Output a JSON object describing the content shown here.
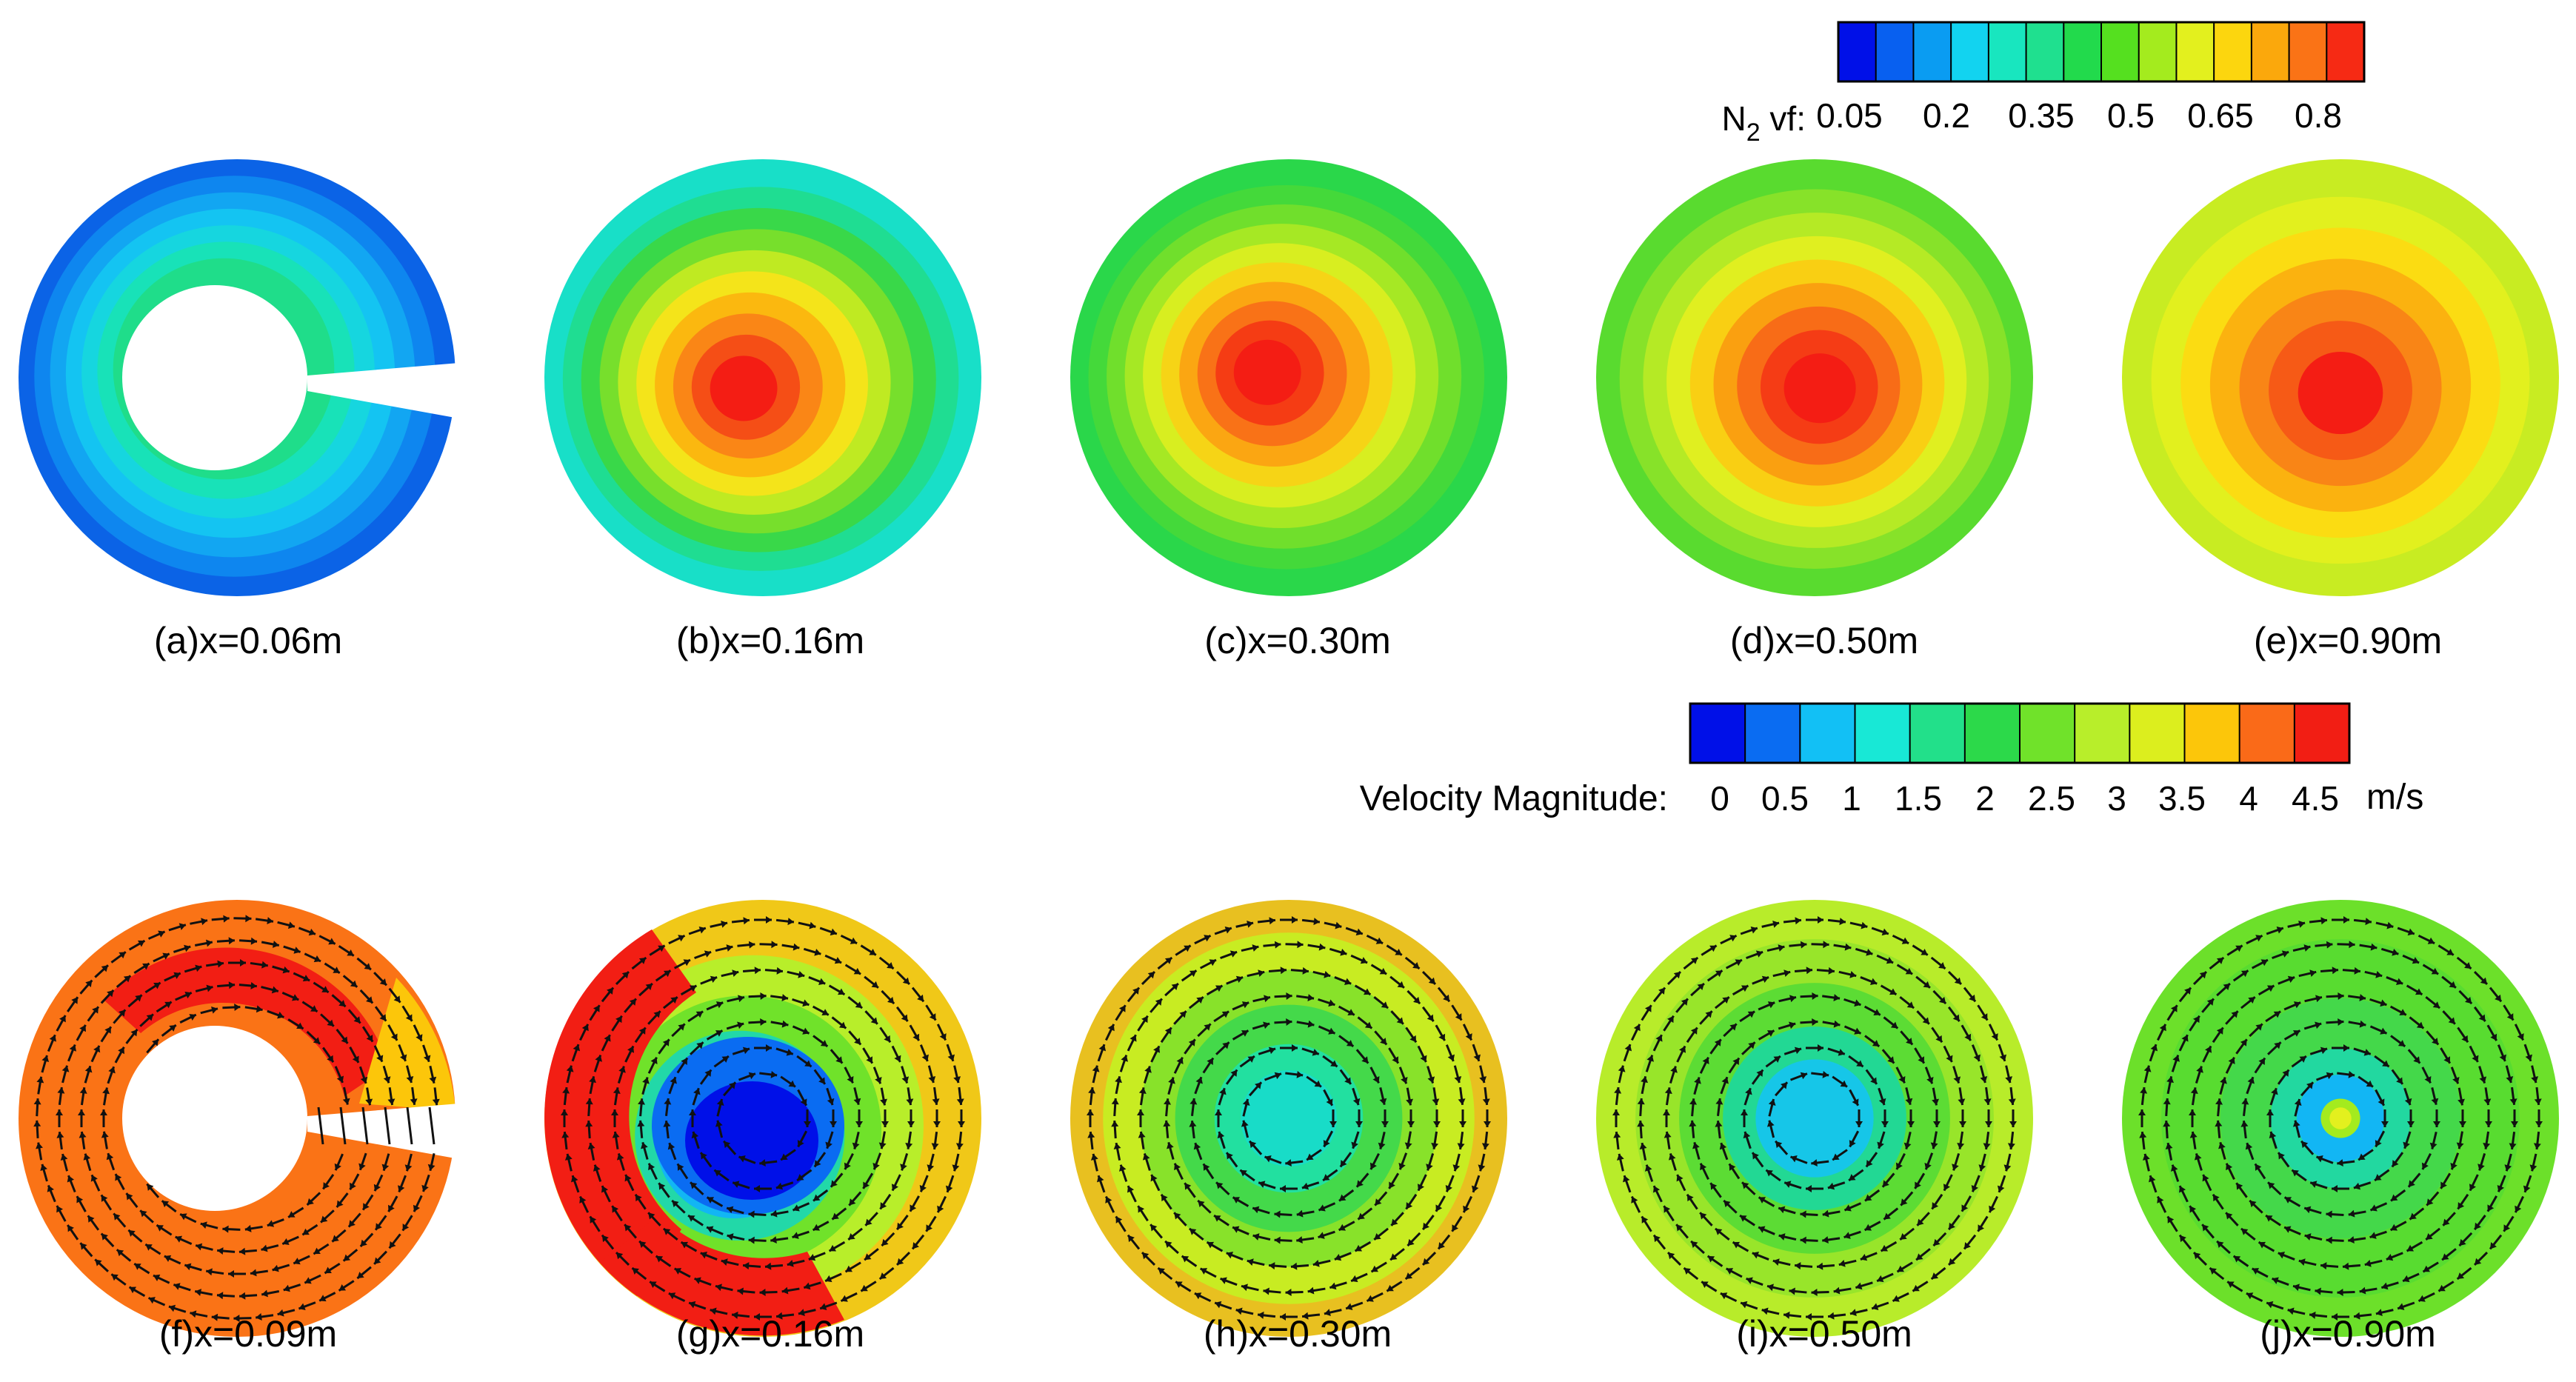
{
  "top_colorbar": {
    "label_main": "N",
    "label_sub": "2",
    "label_tail": " vf:",
    "tick_labels": [
      "0.05",
      "0.2",
      "0.35",
      "0.5",
      "0.65",
      "0.8"
    ],
    "colors": [
      "#0010e8",
      "#0860f0",
      "#0a9cf2",
      "#12d3f0",
      "#18e6bf",
      "#1fe08f",
      "#22da4c",
      "#55e01f",
      "#a4eb1e",
      "#e3f01e",
      "#fcd60e",
      "#fba80c",
      "#fa7316",
      "#f62a14"
    ]
  },
  "bottom_colorbar": {
    "label": "Velocity Magnitude:",
    "tick_labels": [
      "0",
      "0.5",
      "1",
      "1.5",
      "2",
      "2.5",
      "3",
      "3.5",
      "4",
      "4.5"
    ],
    "unit": "m/s",
    "colors": [
      "#0010e8",
      "#0a6cf2",
      "#12c0f5",
      "#18e8d6",
      "#22e08a",
      "#2cd94a",
      "#70e22a",
      "#b8ee2a",
      "#dcee1e",
      "#fcc60a",
      "#fa6a18",
      "#f21e14"
    ]
  },
  "top_panels": [
    {
      "caption": "(a)x=0.06m",
      "rings": [
        "#0b63e6",
        "#0e86ef",
        "#12a6f2",
        "#14c4f2",
        "#16d6df",
        "#18e2b8",
        "#1fdd8a"
      ],
      "hole": true
    },
    {
      "caption": "(b)x=0.16m",
      "rings": [
        "#18dfc8",
        "#1fdd92",
        "#39d849",
        "#77df2c",
        "#bfea22",
        "#f4e41a",
        "#fbb80f",
        "#fa8616",
        "#f54e16",
        "#f41d14"
      ]
    },
    {
      "caption": "(c)x=0.30m",
      "rings": [
        "#2ad74a",
        "#44d93a",
        "#70df2c",
        "#a6e824",
        "#d8ee20",
        "#f6d416",
        "#fba612",
        "#f97217",
        "#f53c14",
        "#f41d14"
      ]
    },
    {
      "caption": "(d)x=0.50m",
      "rings": [
        "#59db2f",
        "#87e229",
        "#b5ea25",
        "#e0ef20",
        "#f9cf13",
        "#faa010",
        "#f86c17",
        "#f53c15",
        "#f41d14"
      ]
    },
    {
      "caption": "(e)x=0.90m",
      "rings": [
        "#c8ec22",
        "#e2f01e",
        "#fbdc12",
        "#fbb20f",
        "#f98516",
        "#f65a16",
        "#f41d14"
      ]
    }
  ],
  "bottom_panels": [
    {
      "caption": "(f)x=0.09m"
    },
    {
      "caption": "(g)x=0.16m"
    },
    {
      "caption": "(h)x=0.30m"
    },
    {
      "caption": "(i)x=0.50m"
    },
    {
      "caption": "(j)x=0.90m"
    }
  ]
}
